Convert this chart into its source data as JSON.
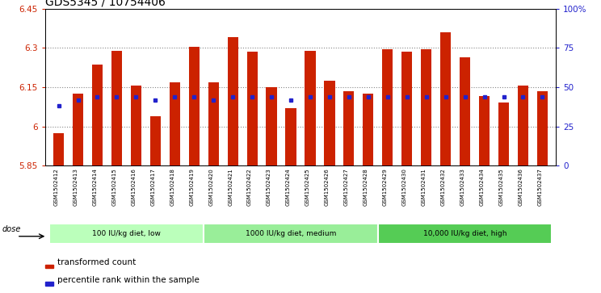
{
  "title": "GDS5345 / 10754406",
  "samples": [
    "GSM1502412",
    "GSM1502413",
    "GSM1502414",
    "GSM1502415",
    "GSM1502416",
    "GSM1502417",
    "GSM1502418",
    "GSM1502419",
    "GSM1502420",
    "GSM1502421",
    "GSM1502422",
    "GSM1502423",
    "GSM1502424",
    "GSM1502425",
    "GSM1502426",
    "GSM1502427",
    "GSM1502428",
    "GSM1502429",
    "GSM1502430",
    "GSM1502431",
    "GSM1502432",
    "GSM1502433",
    "GSM1502434",
    "GSM1502435",
    "GSM1502436",
    "GSM1502437"
  ],
  "bar_tops": [
    5.975,
    6.125,
    6.235,
    6.29,
    6.155,
    6.04,
    6.17,
    6.305,
    6.17,
    6.34,
    6.285,
    6.15,
    6.07,
    6.29,
    6.175,
    6.135,
    6.125,
    6.295,
    6.285,
    6.295,
    6.36,
    6.265,
    6.115,
    6.09,
    6.155,
    6.135
  ],
  "dot_pct": [
    38,
    42,
    44,
    44,
    44,
    42,
    44,
    44,
    42,
    44,
    44,
    44,
    42,
    44,
    44,
    44,
    44,
    44,
    44,
    44,
    44,
    44,
    44,
    44,
    44,
    44
  ],
  "ymin": 5.85,
  "ymax": 6.45,
  "yticks": [
    5.85,
    6.0,
    6.15,
    6.3,
    6.45
  ],
  "ytick_labels": [
    "5.85",
    "6",
    "6.15",
    "6.3",
    "6.45"
  ],
  "y2ticks_pct": [
    0,
    25,
    50,
    75,
    100
  ],
  "y2tick_labels": [
    "0",
    "25",
    "50",
    "75",
    "100%"
  ],
  "bar_color": "#cc2200",
  "dot_color": "#2222cc",
  "grid_color": "#888888",
  "groups": [
    {
      "label": "100 IU/kg diet, low",
      "start": 0,
      "end": 7,
      "color": "#bbffbb"
    },
    {
      "label": "1000 IU/kg diet, medium",
      "start": 8,
      "end": 16,
      "color": "#99ee99"
    },
    {
      "label": "10,000 IU/kg diet, high",
      "start": 17,
      "end": 25,
      "color": "#55cc55"
    }
  ],
  "dose_label": "dose",
  "legend_bar_label": "transformed count",
  "legend_dot_label": "percentile rank within the sample",
  "title_fontsize": 10,
  "left_tick_color": "#cc2200",
  "right_tick_color": "#2222cc",
  "xticklabel_fontsize": 5.0,
  "bar_width": 0.55
}
